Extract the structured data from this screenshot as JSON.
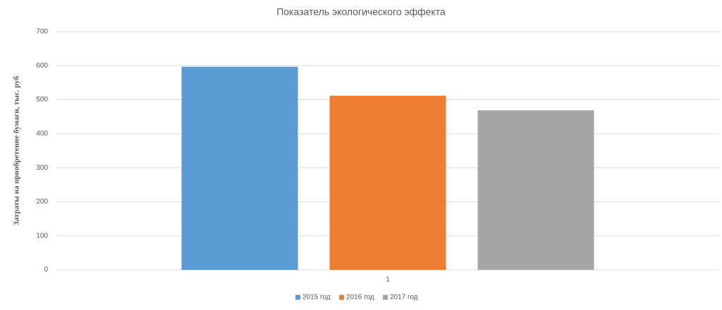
{
  "chart_data": {
    "type": "bar",
    "title": "Показатель экологического эффекта",
    "y_label": "Затраты на приобретение бумаги, тыс. руб",
    "categories": [
      "1"
    ],
    "series": [
      {
        "name": "2015 год",
        "color": "#5b9bd5",
        "values": [
          597
        ]
      },
      {
        "name": "2016 год",
        "color": "#ed7d31",
        "values": [
          512
        ]
      },
      {
        "name": "2017 год",
        "color": "#a5a5a5",
        "values": [
          469
        ]
      }
    ],
    "ylim": [
      0,
      700
    ],
    "yticks": [
      0,
      100,
      200,
      300,
      400,
      500,
      600,
      700
    ],
    "grid": true,
    "legend": "bottom"
  }
}
